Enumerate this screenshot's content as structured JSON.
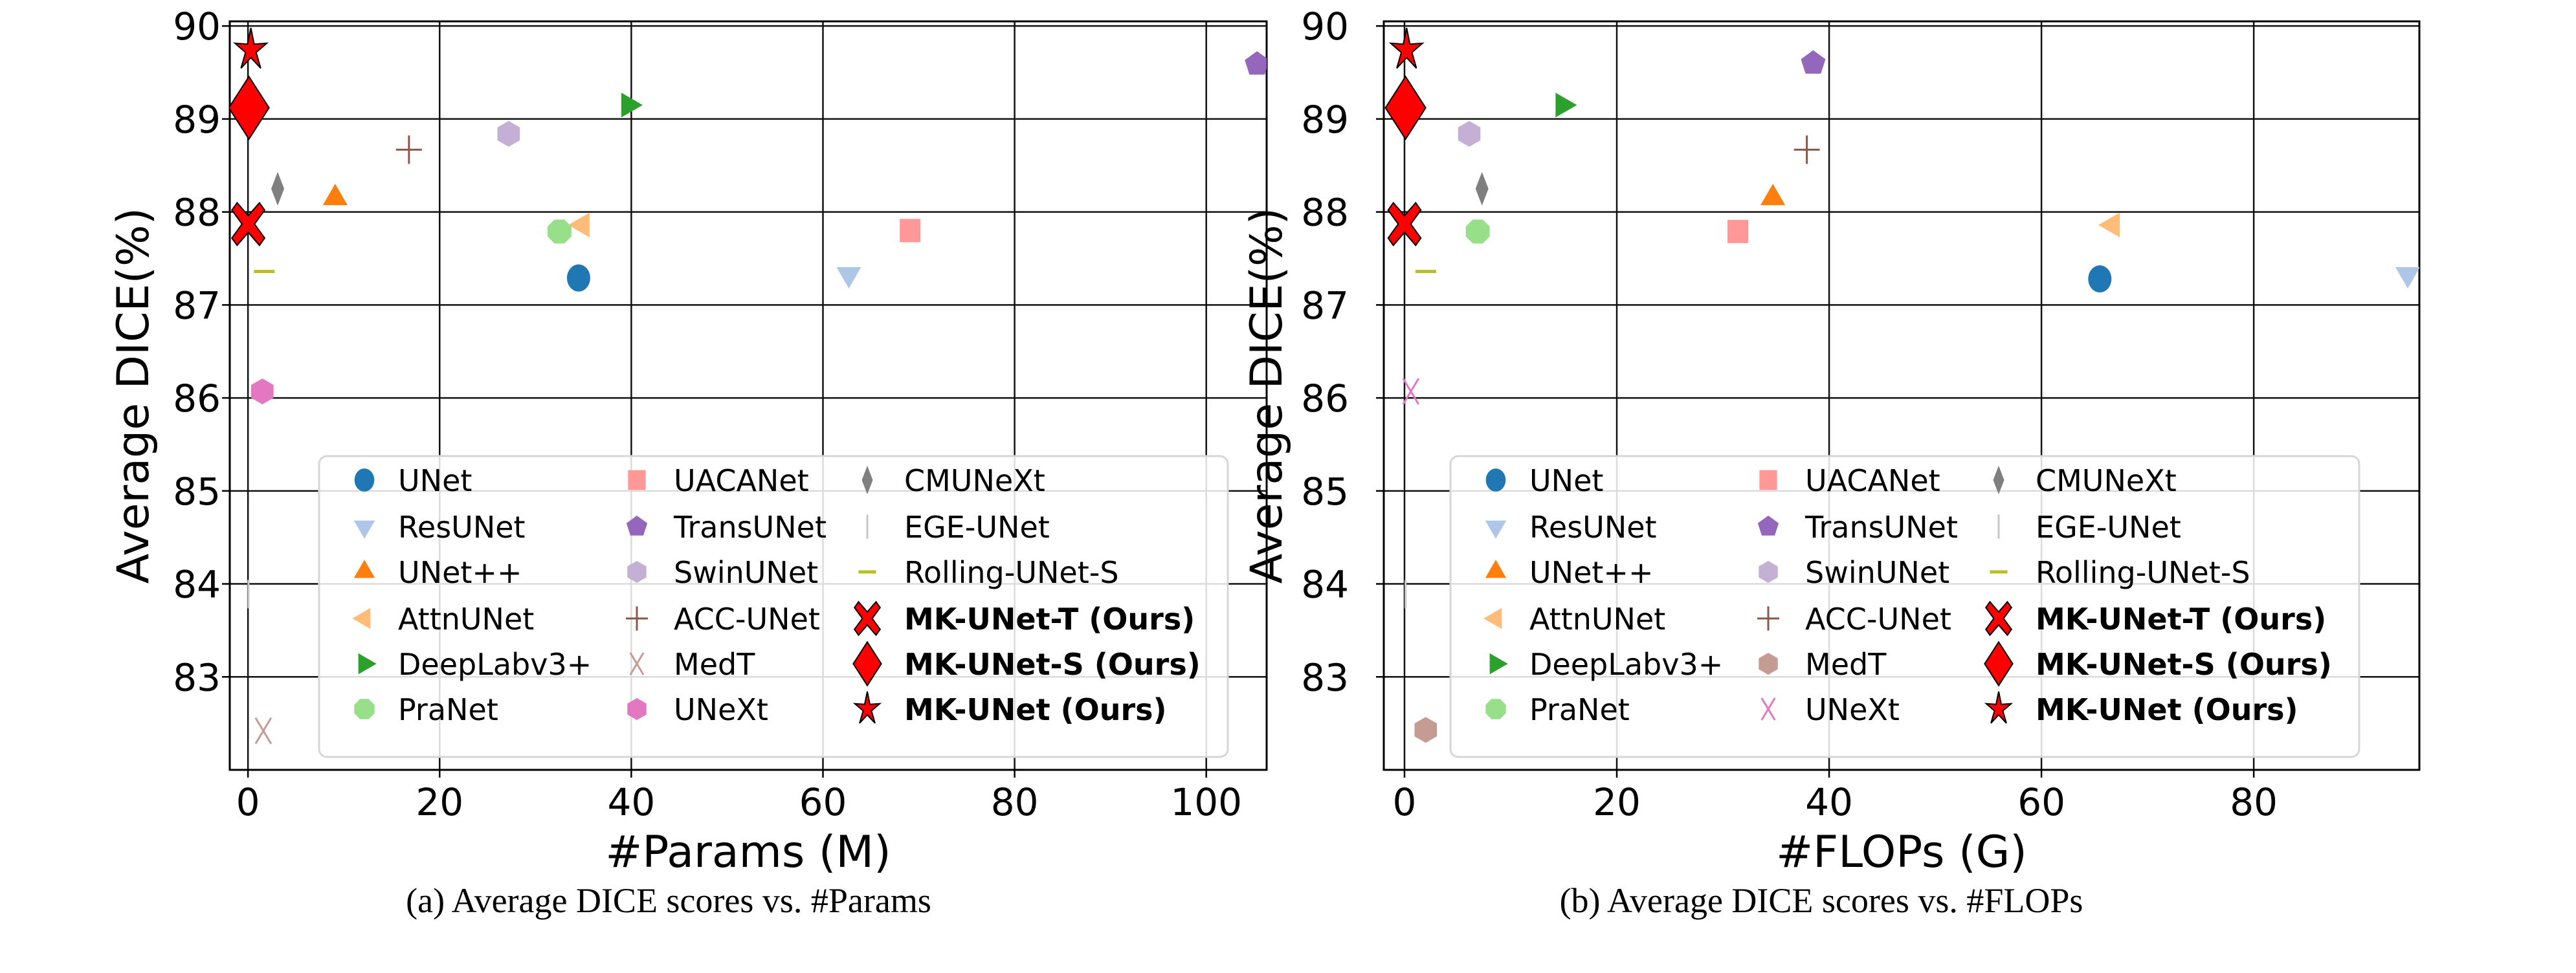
{
  "chart_data": [
    {
      "type": "scatter",
      "caption": "(a) Average DICE scores vs. #Params",
      "xlabel": "#Params (M)",
      "ylabel": "Average DICE(%)",
      "xlim": [
        -1.9,
        106.3
      ],
      "ylim": [
        82.0,
        90.05
      ],
      "xticks": [
        0,
        20,
        40,
        60,
        80,
        100
      ],
      "yticks": [
        83,
        84,
        85,
        86,
        87,
        88,
        89,
        90
      ],
      "grid": true,
      "legend_position": "lower-right",
      "series": [
        {
          "name": "UNet",
          "x": 34.5,
          "y": 87.29,
          "marker": "circle",
          "color": "#1f77b4"
        },
        {
          "name": "ResUNet",
          "x": 62.7,
          "y": 87.33,
          "marker": "triangle-down",
          "color": "#aec7e8"
        },
        {
          "name": "UNet++",
          "x": 9.1,
          "y": 88.15,
          "marker": "triangle-up",
          "color": "#ff7f0e"
        },
        {
          "name": "AttnUNet",
          "x": 34.9,
          "y": 87.86,
          "marker": "triangle-left",
          "color": "#ffbb78"
        },
        {
          "name": "DeepLabv3+",
          "x": 39.7,
          "y": 89.15,
          "marker": "triangle-right",
          "color": "#2ca02c"
        },
        {
          "name": "PraNet",
          "x": 32.5,
          "y": 87.79,
          "marker": "octagon",
          "color": "#98df8a"
        },
        {
          "name": "UACANet",
          "x": 69.1,
          "y": 87.8,
          "marker": "square",
          "color": "#ff9896"
        },
        {
          "name": "TransUNet",
          "x": 105.3,
          "y": 89.59,
          "marker": "pentagon",
          "color": "#9467bd"
        },
        {
          "name": "SwinUNet",
          "x": 27.2,
          "y": 88.84,
          "marker": "hexagon",
          "color": "#c5b0d5"
        },
        {
          "name": "ACC-UNet",
          "x": 16.8,
          "y": 88.67,
          "marker": "plus",
          "color": "#8c564b"
        },
        {
          "name": "MedT",
          "x": 1.6,
          "y": 82.42,
          "marker": "x",
          "color": "#c49c94"
        },
        {
          "name": "UNeXt",
          "x": 1.5,
          "y": 86.07,
          "marker": "hexagon",
          "color": "#e377c2"
        },
        {
          "name": "CMUNeXt",
          "x": 3.1,
          "y": 88.25,
          "marker": "thin-diamond",
          "color": "#7f7f7f"
        },
        {
          "name": "EGE-UNet",
          "x": 0.05,
          "y": 83.89,
          "marker": "vline",
          "color": "#c7c7c7"
        },
        {
          "name": "Rolling-UNet-S",
          "x": 1.7,
          "y": 87.36,
          "marker": "hline",
          "color": "#bcbd22"
        },
        {
          "name": "MK-UNet-T (Ours)",
          "x": 0.03,
          "y": 87.87,
          "marker": "X",
          "color": "#ff0000",
          "bold": true
        },
        {
          "name": "MK-UNet-S (Ours)",
          "x": 0.1,
          "y": 89.12,
          "marker": "diamond",
          "color": "#ff0000",
          "bold": true
        },
        {
          "name": "MK-UNet (Ours)",
          "x": 0.3,
          "y": 89.74,
          "marker": "star",
          "color": "#ff0000",
          "bold": true
        }
      ]
    },
    {
      "type": "scatter",
      "caption": "(b) Average DICE scores vs. #FLOPs",
      "xlabel": "#FLOPs (G)",
      "ylabel": "Average DICE(%)",
      "xlim": [
        -1.95,
        95.6
      ],
      "ylim": [
        82.0,
        90.05
      ],
      "xticks": [
        0,
        20,
        40,
        60,
        80
      ],
      "yticks": [
        83,
        84,
        85,
        86,
        87,
        88,
        89,
        90
      ],
      "grid": true,
      "legend_position": "lower-right",
      "series": [
        {
          "name": "UNet",
          "x": 65.5,
          "y": 87.28,
          "marker": "circle",
          "color": "#1f77b4"
        },
        {
          "name": "ResUNet",
          "x": 94.5,
          "y": 87.33,
          "marker": "triangle-down",
          "color": "#aec7e8"
        },
        {
          "name": "UNet++",
          "x": 34.7,
          "y": 88.15,
          "marker": "triangle-up",
          "color": "#ff7f0e"
        },
        {
          "name": "AttnUNet",
          "x": 66.7,
          "y": 87.86,
          "marker": "triangle-left",
          "color": "#ffbb78"
        },
        {
          "name": "DeepLabv3+",
          "x": 14.9,
          "y": 89.15,
          "marker": "triangle-right",
          "color": "#2ca02c"
        },
        {
          "name": "PraNet",
          "x": 6.9,
          "y": 87.79,
          "marker": "octagon",
          "color": "#98df8a"
        },
        {
          "name": "UACANet",
          "x": 31.4,
          "y": 87.79,
          "marker": "square",
          "color": "#ff9896"
        },
        {
          "name": "TransUNet",
          "x": 38.5,
          "y": 89.6,
          "marker": "pentagon",
          "color": "#9467bd"
        },
        {
          "name": "SwinUNet",
          "x": 6.1,
          "y": 88.84,
          "marker": "hexagon",
          "color": "#c5b0d5"
        },
        {
          "name": "ACC-UNet",
          "x": 37.9,
          "y": 88.67,
          "marker": "plus",
          "color": "#8c564b"
        },
        {
          "name": "MedT",
          "x": 2.0,
          "y": 82.43,
          "marker": "hexagon",
          "color": "#c49c94"
        },
        {
          "name": "UNeXt",
          "x": 0.6,
          "y": 86.07,
          "marker": "x",
          "color": "#e377c2"
        },
        {
          "name": "CMUNeXt",
          "x": 7.3,
          "y": 88.25,
          "marker": "thin-diamond",
          "color": "#7f7f7f"
        },
        {
          "name": "EGE-UNet",
          "x": 0.1,
          "y": 83.89,
          "marker": "vline",
          "color": "#c7c7c7"
        },
        {
          "name": "Rolling-UNet-S",
          "x": 2.0,
          "y": 87.36,
          "marker": "hline",
          "color": "#bcbd22"
        },
        {
          "name": "MK-UNet-T (Ours)",
          "x": 0.0,
          "y": 87.87,
          "marker": "X",
          "color": "#ff0000",
          "bold": true
        },
        {
          "name": "MK-UNet-S (Ours)",
          "x": 0.1,
          "y": 89.12,
          "marker": "diamond",
          "color": "#ff0000",
          "bold": true
        },
        {
          "name": "MK-UNet (Ours)",
          "x": 0.2,
          "y": 89.74,
          "marker": "star",
          "color": "#ff0000",
          "bold": true
        }
      ]
    }
  ]
}
